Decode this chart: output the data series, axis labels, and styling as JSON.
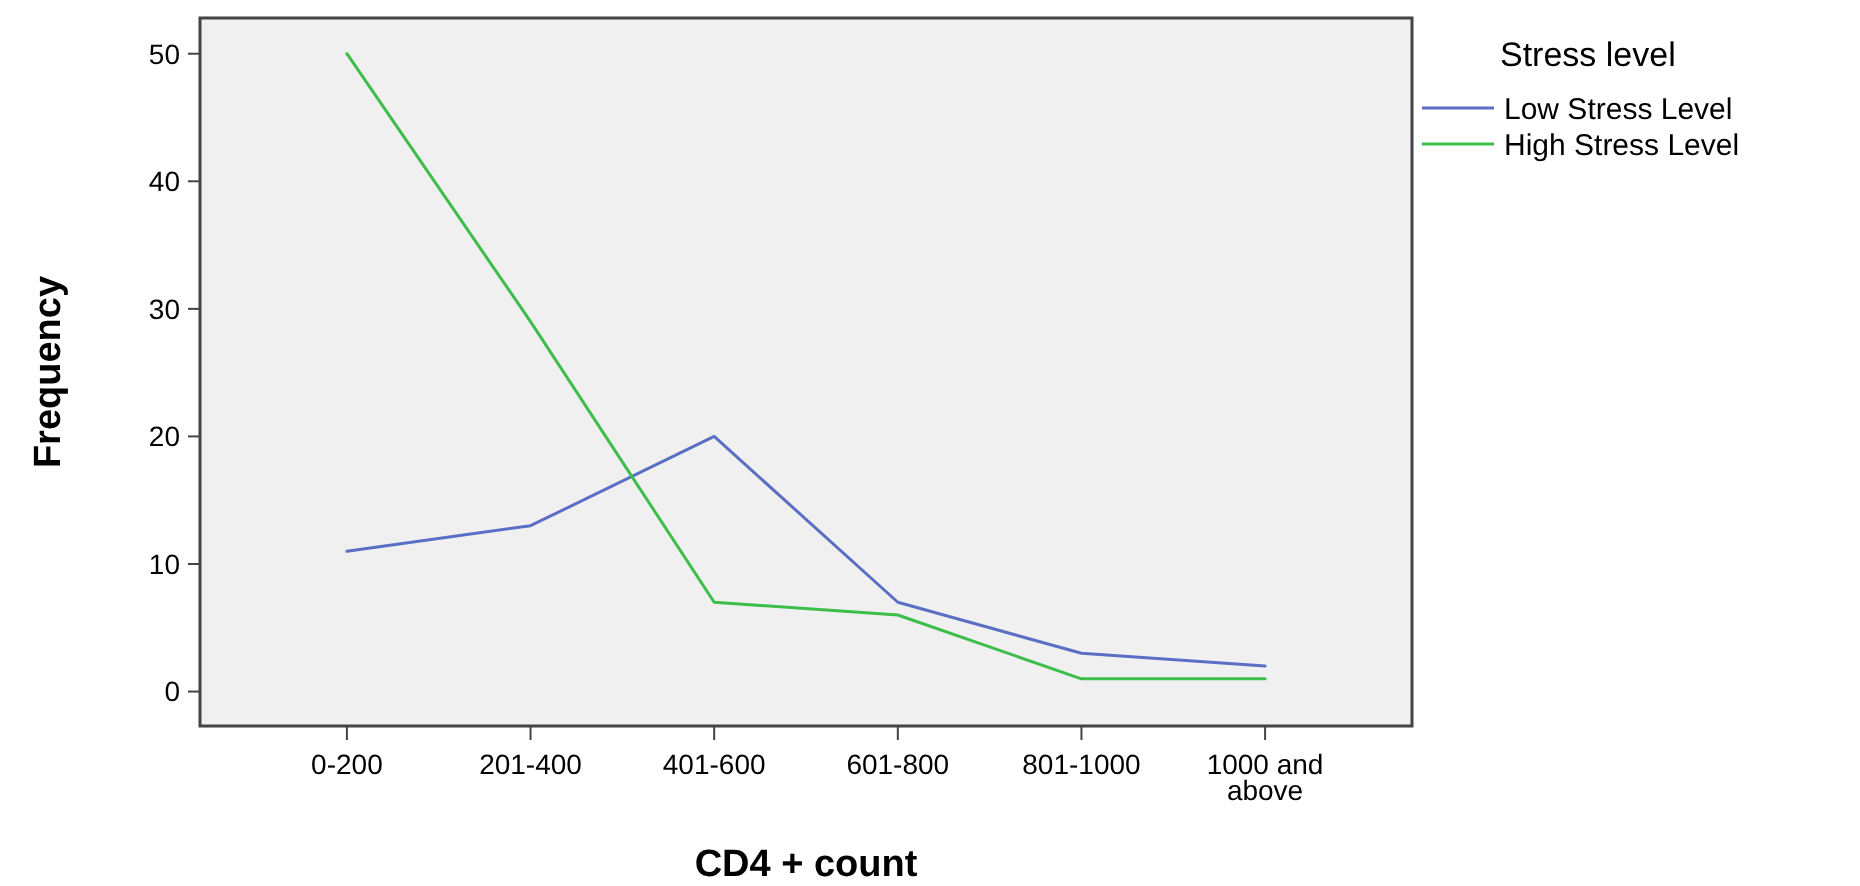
{
  "chart_data": {
    "type": "line",
    "xlabel": "CD4 + count",
    "ylabel": "Frequency",
    "legend_title": "Stress level",
    "categories": [
      "0-200",
      "201-400",
      "401-600",
      "601-800",
      "801-1000",
      "1000 and above"
    ],
    "series": [
      {
        "name": "Low Stress Level",
        "color": "#5a6fc4",
        "values": [
          11,
          13,
          20,
          7,
          3,
          2
        ]
      },
      {
        "name": "High Stress Level",
        "color": "#3dbd4a",
        "values": [
          50,
          29,
          7,
          6,
          1,
          1
        ]
      }
    ],
    "ylim": [
      -2.7,
      52.8
    ],
    "yticks": [
      0,
      10,
      20,
      30,
      40,
      50
    ],
    "grid": false,
    "legend": "top right",
    "marker": "none",
    "line_style": "solid"
  }
}
